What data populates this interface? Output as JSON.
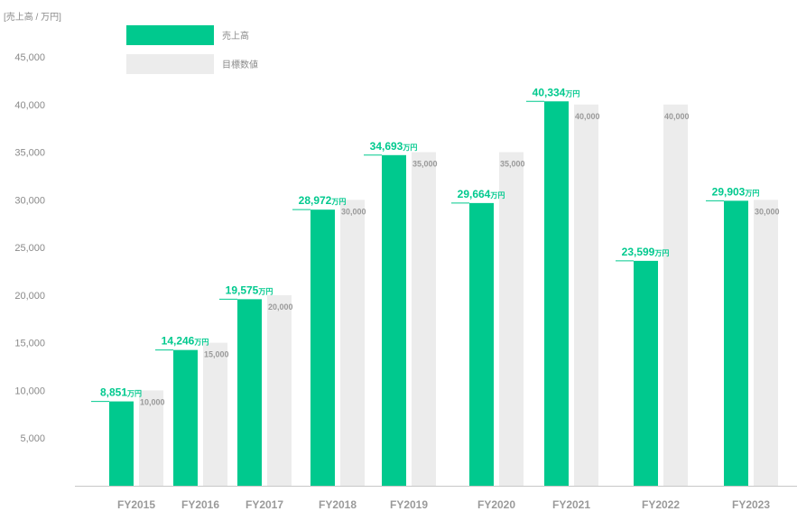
{
  "chart_data": {
    "type": "bar",
    "unit_label": "[売上高 / 万円]",
    "categories": [
      "FY2015",
      "FY2016",
      "FY2017",
      "FY2018",
      "FY2019",
      "FY2020",
      "FY2021",
      "FY2022",
      "FY2023"
    ],
    "series": [
      {
        "name": "売上高",
        "values": [
          8851,
          14246,
          19575,
          28972,
          34693,
          29664,
          40334,
          23599,
          29903
        ],
        "labels": [
          "8,851",
          "14,246",
          "19,575",
          "28,972",
          "34,693",
          "29,664",
          "40,334",
          "23,599",
          "29,903"
        ],
        "label_suffix": "万円",
        "color": "#00c98e"
      },
      {
        "name": "目標数値",
        "values": [
          10000,
          15000,
          20000,
          30000,
          35000,
          35000,
          40000,
          40000,
          30000
        ],
        "labels": [
          "10,000",
          "15,000",
          "20,000",
          "30,000",
          "35,000",
          "35,000",
          "40,000",
          "40,000",
          "30,000"
        ],
        "color": "#ececec"
      }
    ],
    "yticks": [
      "5,000",
      "10,000",
      "15,000",
      "20,000",
      "25,000",
      "30,000",
      "35,000",
      "40,000",
      "45,000"
    ],
    "ylim": [
      0,
      45000
    ],
    "grid": false,
    "legend_position": "top-left",
    "baseline_color": "#c8c8c8",
    "label_color": "#9a9a9a"
  }
}
